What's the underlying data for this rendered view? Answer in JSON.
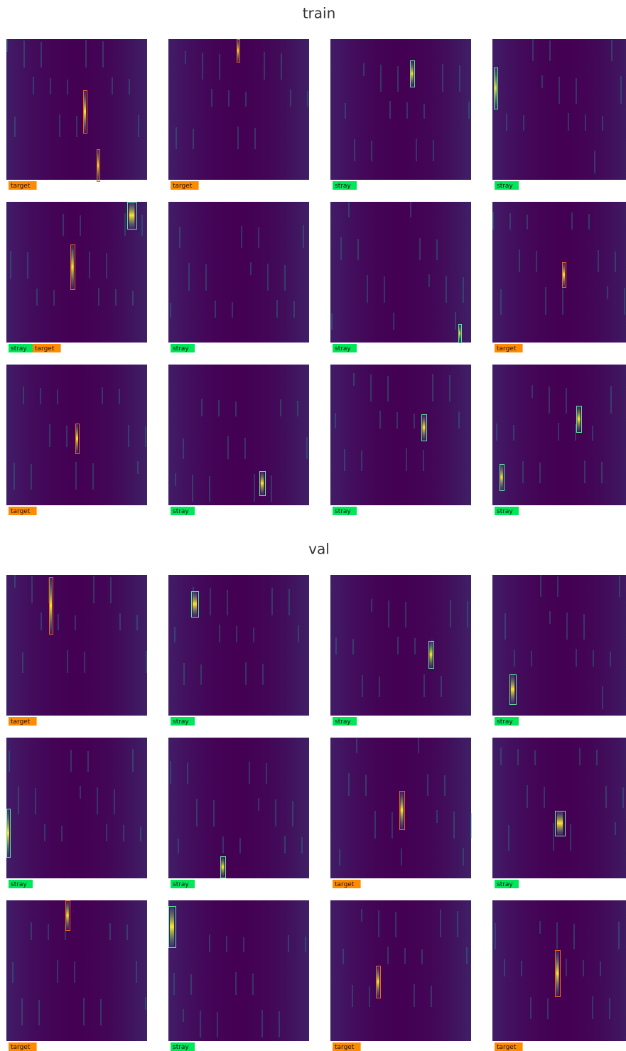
{
  "sections": [
    {
      "title": "train",
      "panels": [
        {
          "labels": [
            "target"
          ]
        },
        {
          "labels": [
            "target"
          ]
        },
        {
          "labels": [
            "stray"
          ]
        },
        {
          "labels": [
            "stray"
          ]
        },
        {
          "labels": [
            "stray",
            "target"
          ]
        },
        {
          "labels": [
            "stray"
          ]
        },
        {
          "labels": [
            "stray"
          ]
        },
        {
          "labels": [
            "target"
          ]
        },
        {
          "labels": [
            "target"
          ]
        },
        {
          "labels": [
            "stray"
          ]
        },
        {
          "labels": [
            "stray"
          ]
        },
        {
          "labels": [
            "stray"
          ]
        }
      ]
    },
    {
      "title": "val",
      "panels": [
        {
          "labels": [
            "target"
          ]
        },
        {
          "labels": [
            "stray"
          ]
        },
        {
          "labels": [
            "stray"
          ]
        },
        {
          "labels": [
            "stray"
          ]
        },
        {
          "labels": [
            "stray"
          ]
        },
        {
          "labels": [
            "stray"
          ]
        },
        {
          "labels": [
            "target"
          ]
        },
        {
          "labels": [
            "stray"
          ]
        },
        {
          "labels": [
            "target"
          ]
        },
        {
          "labels": [
            "stray"
          ]
        },
        {
          "labels": [
            "target"
          ]
        },
        {
          "labels": [
            "target"
          ]
        }
      ]
    }
  ]
}
